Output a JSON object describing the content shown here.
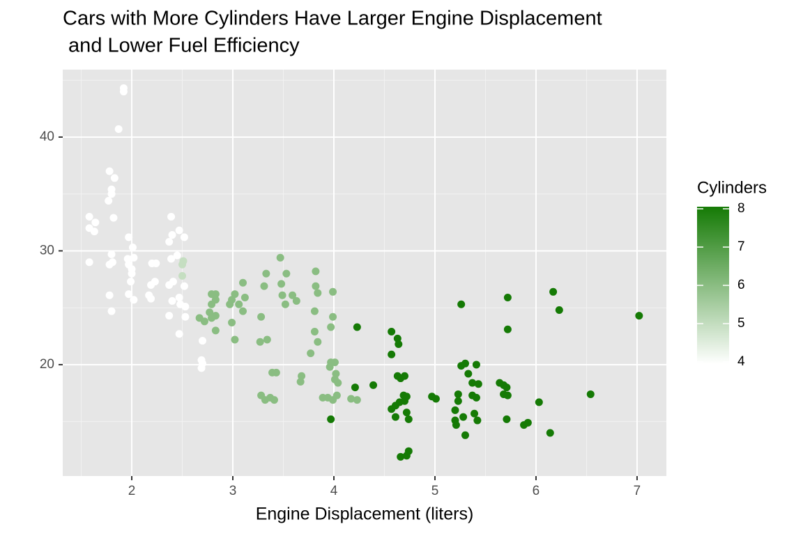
{
  "chart_data": {
    "type": "scatter",
    "title": "Cars with More Cylinders Have Larger Engine Displacement",
    "subtitle": " and Lower Fuel Efficiency",
    "x_label": "Engine Displacement (liters)",
    "xlim": [
      1.317,
      7.29
    ],
    "xticks": [
      2,
      3,
      4,
      5,
      6,
      7
    ],
    "ylim": [
      10.21,
      45.93
    ],
    "yticks": [
      20,
      30,
      40
    ],
    "grid": true,
    "x": [
      1.92,
      1.92,
      1.87,
      1.78,
      1.83,
      1.8,
      1.8,
      1.77,
      1.82,
      1.58,
      1.64,
      1.58,
      1.63,
      1.58,
      1.97,
      2.01,
      1.78,
      1.81,
      1.8,
      1.96,
      2.02,
      1.97,
      2.0,
      2.0,
      1.99,
      1.78,
      1.97,
      2.02,
      1.8,
      2.2,
      2.24,
      2.19,
      2.23,
      2.17,
      2.19,
      2.37,
      2.4,
      2.39,
      2.47,
      2.52,
      2.39,
      2.45,
      2.37,
      2.41,
      2.4,
      2.37,
      2.47,
      2.52,
      2.48,
      2.53,
      2.53,
      2.47,
      2.7,
      2.69,
      2.7,
      2.69,
      2.5,
      2.51,
      2.5,
      2.67,
      2.72,
      2.77,
      2.79,
      2.79,
      2.83,
      2.83,
      2.83,
      2.83,
      2.79,
      2.97,
      2.99,
      3.02,
      3.06,
      3.1,
      3.1,
      3.12,
      2.99,
      3.02,
      3.31,
      3.33,
      3.28,
      3.27,
      3.34,
      3.28,
      3.32,
      3.37,
      3.41,
      3.39,
      3.43,
      3.47,
      3.48,
      3.53,
      3.49,
      3.52,
      3.59,
      3.63,
      3.68,
      3.67,
      3.77,
      3.81,
      3.81,
      3.84,
      3.82,
      3.82,
      3.84,
      3.89,
      3.94,
      3.99,
      3.99,
      3.97,
      3.97,
      4.01,
      3.96,
      4.02,
      4.01,
      4.04,
      3.99,
      4.03,
      4.23,
      4.17,
      3.97,
      4.23,
      4.21,
      4.39,
      4.57,
      4.63,
      4.64,
      4.57,
      4.63,
      4.66,
      4.7,
      4.61,
      4.65,
      4.7,
      4.69,
      4.72,
      4.57,
      4.61,
      4.66,
      4.72,
      4.74,
      4.72,
      4.74,
      4.97,
      5.01,
      5.26,
      5.23,
      5.26,
      5.3,
      5.33,
      5.41,
      5.43,
      5.37,
      5.37,
      5.41,
      5.23,
      5.2,
      5.2,
      5.21,
      5.28,
      5.3,
      5.39,
      5.42,
      5.64,
      5.68,
      5.71,
      5.68,
      5.72,
      5.72,
      5.72,
      5.71,
      5.88,
      5.92,
      6.03,
      6.17,
      6.23,
      6.14,
      6.54,
      7.02
    ],
    "values": [
      44.3,
      44.0,
      40.7,
      37.0,
      36.4,
      35.4,
      35.0,
      34.4,
      32.9,
      33.0,
      32.5,
      32.0,
      31.7,
      29.0,
      31.2,
      30.3,
      28.8,
      29.0,
      29.7,
      29.3,
      29.4,
      28.8,
      28.4,
      28.0,
      27.3,
      26.1,
      26.2,
      25.7,
      24.7,
      28.9,
      28.9,
      27.0,
      27.3,
      26.1,
      25.8,
      30.8,
      31.4,
      33.0,
      31.8,
      31.2,
      29.3,
      29.6,
      27.0,
      27.3,
      25.6,
      24.3,
      25.9,
      26.9,
      25.3,
      25.1,
      24.2,
      22.7,
      22.1,
      20.4,
      20.1,
      19.7,
      28.8,
      29.1,
      27.8,
      24.1,
      23.8,
      24.6,
      25.3,
      26.2,
      26.2,
      25.7,
      24.3,
      23.0,
      24.1,
      25.3,
      25.7,
      26.2,
      25.3,
      27.2,
      24.7,
      25.9,
      23.7,
      22.2,
      26.9,
      28.0,
      24.2,
      22.0,
      22.2,
      17.3,
      16.9,
      17.1,
      16.9,
      19.3,
      19.3,
      29.4,
      27.1,
      28.0,
      26.1,
      25.3,
      26.1,
      25.6,
      19.0,
      18.5,
      21.0,
      24.7,
      22.9,
      22.0,
      28.2,
      26.9,
      26.3,
      17.1,
      17.1,
      26.4,
      24.2,
      23.3,
      20.2,
      20.2,
      19.8,
      19.2,
      18.7,
      18.4,
      16.9,
      17.3,
      16.9,
      17.0,
      15.2,
      23.3,
      18.0,
      18.2,
      22.9,
      22.3,
      21.8,
      20.9,
      19.0,
      18.8,
      19.0,
      16.4,
      16.7,
      16.8,
      17.3,
      17.2,
      16.1,
      15.4,
      11.9,
      12.0,
      12.4,
      15.8,
      15.2,
      17.2,
      17.0,
      25.3,
      17.4,
      19.9,
      20.1,
      19.2,
      20.0,
      18.3,
      18.4,
      17.3,
      17.1,
      16.8,
      16.0,
      15.1,
      14.7,
      15.4,
      13.8,
      15.7,
      15.1,
      18.4,
      18.2,
      18.0,
      17.4,
      17.3,
      25.9,
      23.1,
      15.2,
      14.7,
      14.9,
      16.7,
      26.4,
      24.8,
      14.0,
      17.4,
      24.3
    ],
    "cylinders": [
      4,
      4,
      4,
      4,
      4,
      4,
      4,
      4,
      4,
      4,
      4,
      4,
      4,
      4,
      4,
      4,
      4,
      4,
      4,
      4,
      4,
      4,
      4,
      4,
      4,
      4,
      4,
      4,
      4,
      4,
      4,
      4,
      4,
      4,
      4,
      4,
      4,
      4,
      4,
      4,
      4,
      4,
      4,
      4,
      4,
      4,
      4,
      4,
      4,
      4,
      4,
      4,
      4,
      4,
      4,
      4,
      5,
      5,
      5,
      6,
      6,
      6,
      6,
      6,
      6,
      6,
      6,
      6,
      6,
      6,
      6,
      6,
      6,
      6,
      6,
      6,
      6,
      6,
      6,
      6,
      6,
      6,
      6,
      6,
      6,
      6,
      6,
      6,
      6,
      6,
      6,
      6,
      6,
      6,
      6,
      6,
      6,
      6,
      6,
      6,
      6,
      6,
      6,
      6,
      6,
      6,
      6,
      6,
      6,
      6,
      6,
      6,
      6,
      6,
      6,
      6,
      6,
      6,
      6,
      6,
      8,
      8,
      8,
      8,
      8,
      8,
      8,
      8,
      8,
      8,
      8,
      8,
      8,
      8,
      8,
      8,
      8,
      8,
      8,
      8,
      8,
      8,
      8,
      8,
      8,
      8,
      8,
      8,
      8,
      8,
      8,
      8,
      8,
      8,
      8,
      8,
      8,
      8,
      8,
      8,
      8,
      8,
      8,
      8,
      8,
      8,
      8,
      8,
      8,
      8,
      8,
      8,
      8,
      8,
      8,
      8,
      8,
      8,
      8
    ],
    "colorbar": {
      "title": "Cylinders",
      "range": [
        4,
        8
      ],
      "ticks": [
        4,
        5,
        6,
        7,
        8
      ],
      "low_color": "#ffffff",
      "high_color": "#157a05"
    }
  }
}
